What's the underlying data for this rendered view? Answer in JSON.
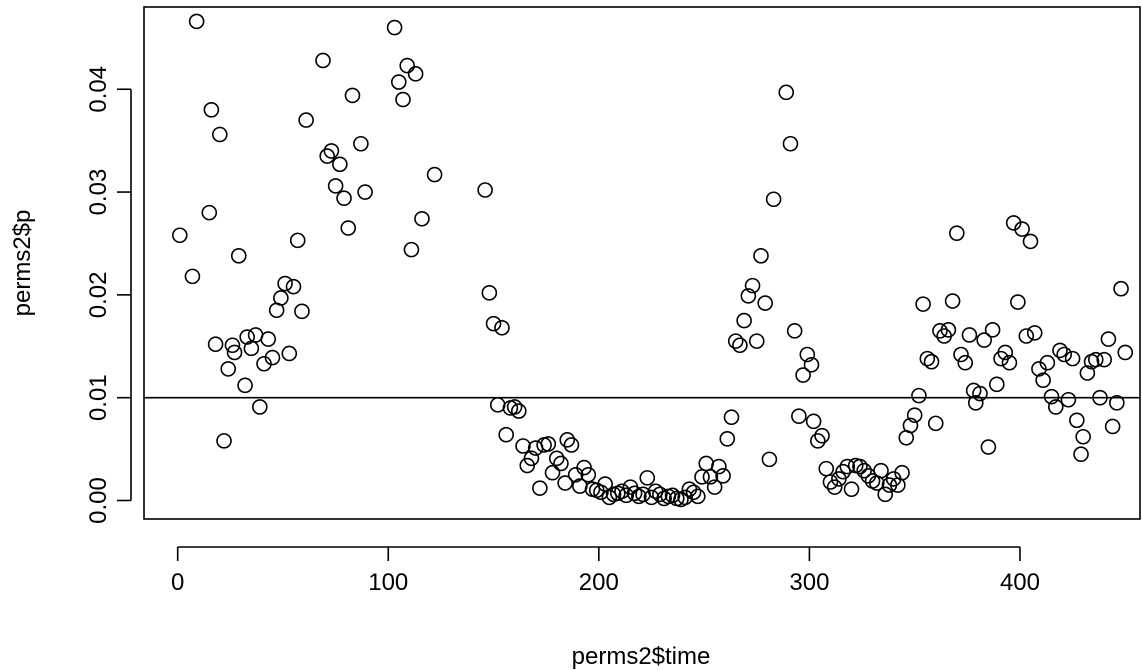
{
  "chart_data": {
    "type": "scatter",
    "xlabel": "perms2$time",
    "ylabel": "perms2$p",
    "xlim": [
      -16,
      457
    ],
    "ylim": [
      -0.0018,
      0.048
    ],
    "xticks": [
      0,
      100,
      200,
      300,
      400
    ],
    "xtick_labels": [
      "0",
      "100",
      "200",
      "300",
      "400"
    ],
    "yticks": [
      0.0,
      0.01,
      0.02,
      0.03,
      0.04
    ],
    "ytick_labels": [
      "0.00",
      "0.01",
      "0.02",
      "0.03",
      "0.04"
    ],
    "hline": 0.01,
    "grid": false,
    "marker": "open-circle",
    "points": [
      [
        1,
        0.0258
      ],
      [
        7,
        0.0218
      ],
      [
        9,
        0.0466
      ],
      [
        15,
        0.028
      ],
      [
        16,
        0.038
      ],
      [
        18,
        0.0152
      ],
      [
        20,
        0.0356
      ],
      [
        22,
        0.0058
      ],
      [
        24,
        0.0128
      ],
      [
        26,
        0.0151
      ],
      [
        27,
        0.0144
      ],
      [
        29,
        0.0238
      ],
      [
        32,
        0.0112
      ],
      [
        33,
        0.0159
      ],
      [
        35,
        0.0148
      ],
      [
        37,
        0.0161
      ],
      [
        39,
        0.0091
      ],
      [
        41,
        0.0133
      ],
      [
        43,
        0.0157
      ],
      [
        45,
        0.0139
      ],
      [
        47,
        0.0185
      ],
      [
        49,
        0.0197
      ],
      [
        51,
        0.0211
      ],
      [
        53,
        0.0143
      ],
      [
        55,
        0.0208
      ],
      [
        57,
        0.0253
      ],
      [
        59,
        0.0184
      ],
      [
        61,
        0.037
      ],
      [
        69,
        0.0428
      ],
      [
        71,
        0.0335
      ],
      [
        73,
        0.034
      ],
      [
        75,
        0.0306
      ],
      [
        77,
        0.0327
      ],
      [
        79,
        0.0294
      ],
      [
        81,
        0.0265
      ],
      [
        83,
        0.0394
      ],
      [
        87,
        0.0347
      ],
      [
        89,
        0.03
      ],
      [
        103,
        0.046
      ],
      [
        105,
        0.0407
      ],
      [
        107,
        0.039
      ],
      [
        109,
        0.0423
      ],
      [
        111,
        0.0244
      ],
      [
        113,
        0.0415
      ],
      [
        116,
        0.0274
      ],
      [
        122,
        0.0317
      ],
      [
        146,
        0.0302
      ],
      [
        148,
        0.0202
      ],
      [
        150,
        0.0172
      ],
      [
        152,
        0.0093
      ],
      [
        154,
        0.0168
      ],
      [
        156,
        0.0064
      ],
      [
        158,
        0.009
      ],
      [
        160,
        0.0091
      ],
      [
        162,
        0.0087
      ],
      [
        164,
        0.0053
      ],
      [
        166,
        0.0034
      ],
      [
        168,
        0.0041
      ],
      [
        170,
        0.0051
      ],
      [
        172,
        0.0012
      ],
      [
        174,
        0.0054
      ],
      [
        176,
        0.0055
      ],
      [
        178,
        0.0027
      ],
      [
        180,
        0.0041
      ],
      [
        182,
        0.0036
      ],
      [
        184,
        0.0017
      ],
      [
        185,
        0.0059
      ],
      [
        187,
        0.0054
      ],
      [
        189,
        0.0025
      ],
      [
        191,
        0.0014
      ],
      [
        193,
        0.0032
      ],
      [
        195,
        0.0025
      ],
      [
        197,
        0.0011
      ],
      [
        199,
        0.001
      ],
      [
        201,
        0.0008
      ],
      [
        203,
        0.0016
      ],
      [
        205,
        0.0003
      ],
      [
        207,
        0.0006
      ],
      [
        209,
        0.0007
      ],
      [
        211,
        0.0009
      ],
      [
        213,
        0.0005
      ],
      [
        215,
        0.0013
      ],
      [
        217,
        0.0007
      ],
      [
        219,
        0.0004
      ],
      [
        221,
        0.0006
      ],
      [
        223,
        0.0022
      ],
      [
        225,
        0.0003
      ],
      [
        227,
        0.0009
      ],
      [
        229,
        0.0006
      ],
      [
        231,
        0.0002
      ],
      [
        233,
        0.0004
      ],
      [
        235,
        0.0005
      ],
      [
        237,
        0.0002
      ],
      [
        239,
        0.0001
      ],
      [
        241,
        0.0003
      ],
      [
        243,
        0.0011
      ],
      [
        245,
        0.0008
      ],
      [
        247,
        0.0004
      ],
      [
        249,
        0.0023
      ],
      [
        251,
        0.0036
      ],
      [
        253,
        0.0023
      ],
      [
        255,
        0.0013
      ],
      [
        257,
        0.0033
      ],
      [
        259,
        0.0024
      ],
      [
        261,
        0.006
      ],
      [
        263,
        0.0081
      ],
      [
        265,
        0.0155
      ],
      [
        267,
        0.0151
      ],
      [
        269,
        0.0175
      ],
      [
        271,
        0.0199
      ],
      [
        273,
        0.0209
      ],
      [
        275,
        0.0155
      ],
      [
        277,
        0.0238
      ],
      [
        279,
        0.0192
      ],
      [
        281,
        0.004
      ],
      [
        283,
        0.0293
      ],
      [
        289,
        0.0397
      ],
      [
        291,
        0.0347
      ],
      [
        293,
        0.0165
      ],
      [
        295,
        0.0082
      ],
      [
        297,
        0.0122
      ],
      [
        299,
        0.0142
      ],
      [
        301,
        0.0132
      ],
      [
        302,
        0.0077
      ],
      [
        304,
        0.0058
      ],
      [
        306,
        0.0063
      ],
      [
        308,
        0.0031
      ],
      [
        310,
        0.0018
      ],
      [
        312,
        0.0013
      ],
      [
        314,
        0.0021
      ],
      [
        316,
        0.0028
      ],
      [
        318,
        0.0033
      ],
      [
        320,
        0.0011
      ],
      [
        322,
        0.0034
      ],
      [
        324,
        0.0033
      ],
      [
        326,
        0.0029
      ],
      [
        328,
        0.0024
      ],
      [
        330,
        0.0019
      ],
      [
        332,
        0.0017
      ],
      [
        334,
        0.0029
      ],
      [
        336,
        0.0006
      ],
      [
        338,
        0.0015
      ],
      [
        340,
        0.0021
      ],
      [
        342,
        0.0015
      ],
      [
        344,
        0.0027
      ],
      [
        346,
        0.0061
      ],
      [
        348,
        0.0073
      ],
      [
        350,
        0.0083
      ],
      [
        352,
        0.0102
      ],
      [
        354,
        0.0191
      ],
      [
        356,
        0.0138
      ],
      [
        358,
        0.0135
      ],
      [
        360,
        0.0075
      ],
      [
        362,
        0.0165
      ],
      [
        364,
        0.016
      ],
      [
        366,
        0.0166
      ],
      [
        368,
        0.0194
      ],
      [
        370,
        0.026
      ],
      [
        372,
        0.0142
      ],
      [
        374,
        0.0134
      ],
      [
        376,
        0.0161
      ],
      [
        378,
        0.0107
      ],
      [
        379,
        0.0095
      ],
      [
        381,
        0.0104
      ],
      [
        383,
        0.0156
      ],
      [
        385,
        0.0052
      ],
      [
        387,
        0.0166
      ],
      [
        389,
        0.0113
      ],
      [
        391,
        0.0138
      ],
      [
        393,
        0.0144
      ],
      [
        395,
        0.0134
      ],
      [
        397,
        0.027
      ],
      [
        399,
        0.0193
      ],
      [
        401,
        0.0264
      ],
      [
        403,
        0.016
      ],
      [
        405,
        0.0252
      ],
      [
        407,
        0.0163
      ],
      [
        409,
        0.0128
      ],
      [
        411,
        0.0117
      ],
      [
        413,
        0.0134
      ],
      [
        415,
        0.0101
      ],
      [
        417,
        0.0091
      ],
      [
        419,
        0.0146
      ],
      [
        421,
        0.0142
      ],
      [
        423,
        0.0098
      ],
      [
        425,
        0.0138
      ],
      [
        427,
        0.0078
      ],
      [
        429,
        0.0045
      ],
      [
        430,
        0.0062
      ],
      [
        432,
        0.0124
      ],
      [
        434,
        0.0135
      ],
      [
        436,
        0.0137
      ],
      [
        438,
        0.01
      ],
      [
        440,
        0.0137
      ],
      [
        442,
        0.0157
      ],
      [
        444,
        0.0072
      ],
      [
        446,
        0.0095
      ],
      [
        448,
        0.0206
      ],
      [
        450,
        0.0144
      ]
    ]
  }
}
